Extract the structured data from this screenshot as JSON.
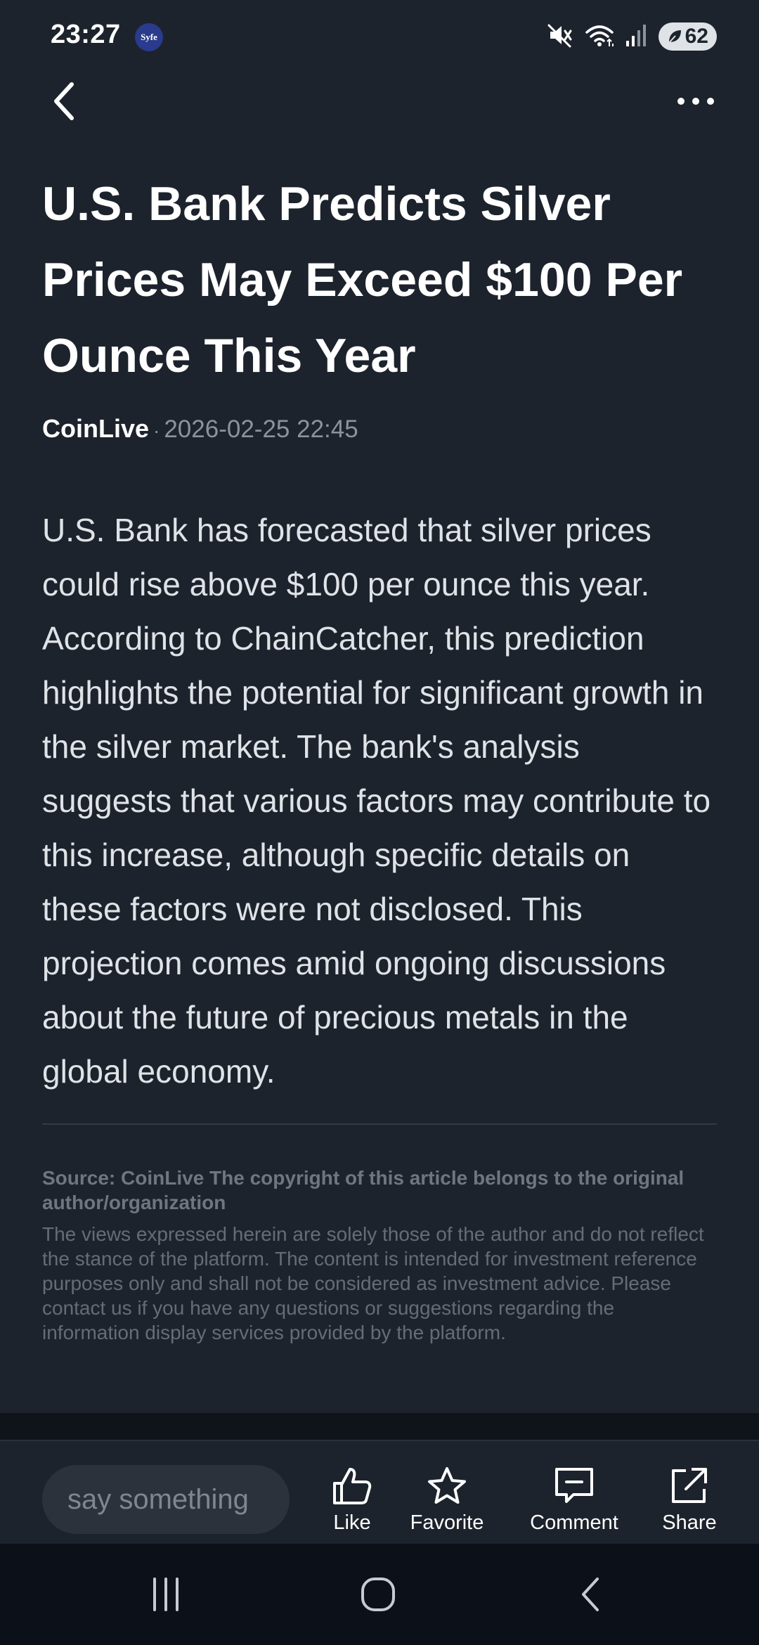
{
  "status_bar": {
    "time": "23:27",
    "notification_app_label": "Syfe",
    "battery_level": "62",
    "icons": [
      "mute-icon",
      "wifi-icon",
      "signal-icon",
      "battery-saver-icon"
    ]
  },
  "nav": {
    "back_icon": "chevron-left-icon",
    "more_icon": "more-horizontal-icon"
  },
  "article": {
    "title": "U.S. Bank Predicts Silver Prices May Exceed $100 Per Ounce This Year",
    "source": "CoinLive",
    "separator": "·",
    "published": "2026-02-25 22:45",
    "body": "U.S. Bank has forecasted that silver prices could rise above $100 per ounce this year. According to ChainCatcher, this prediction highlights the potential for significant growth in the silver market. The bank's analysis suggests that various factors may contribute to this increase, although specific details on these factors were not disclosed. This projection comes amid ongoing discussions about the future of precious metals in the global economy.",
    "copyright": "Source: CoinLive The copyright of this article belongs to the original author/organization",
    "disclaimer": "The views expressed herein are solely those of the author and do not reflect the stance of the platform. The content is intended for investment reference purposes only and shall not be considered as investment advice. Please contact us if you have any questions or suggestions regarding the information display services provided by the platform."
  },
  "action_bar": {
    "comment_placeholder": "say something",
    "like_label": "Like",
    "favorite_label": "Favorite",
    "comment_label": "Comment",
    "share_label": "Share"
  },
  "colors": {
    "background": "#1d232c",
    "title": "#ffffff",
    "body_text": "#dfe3e7",
    "muted_text": "#8b939c",
    "input_background": "#2b323b",
    "system_nav": "#0c1119"
  }
}
